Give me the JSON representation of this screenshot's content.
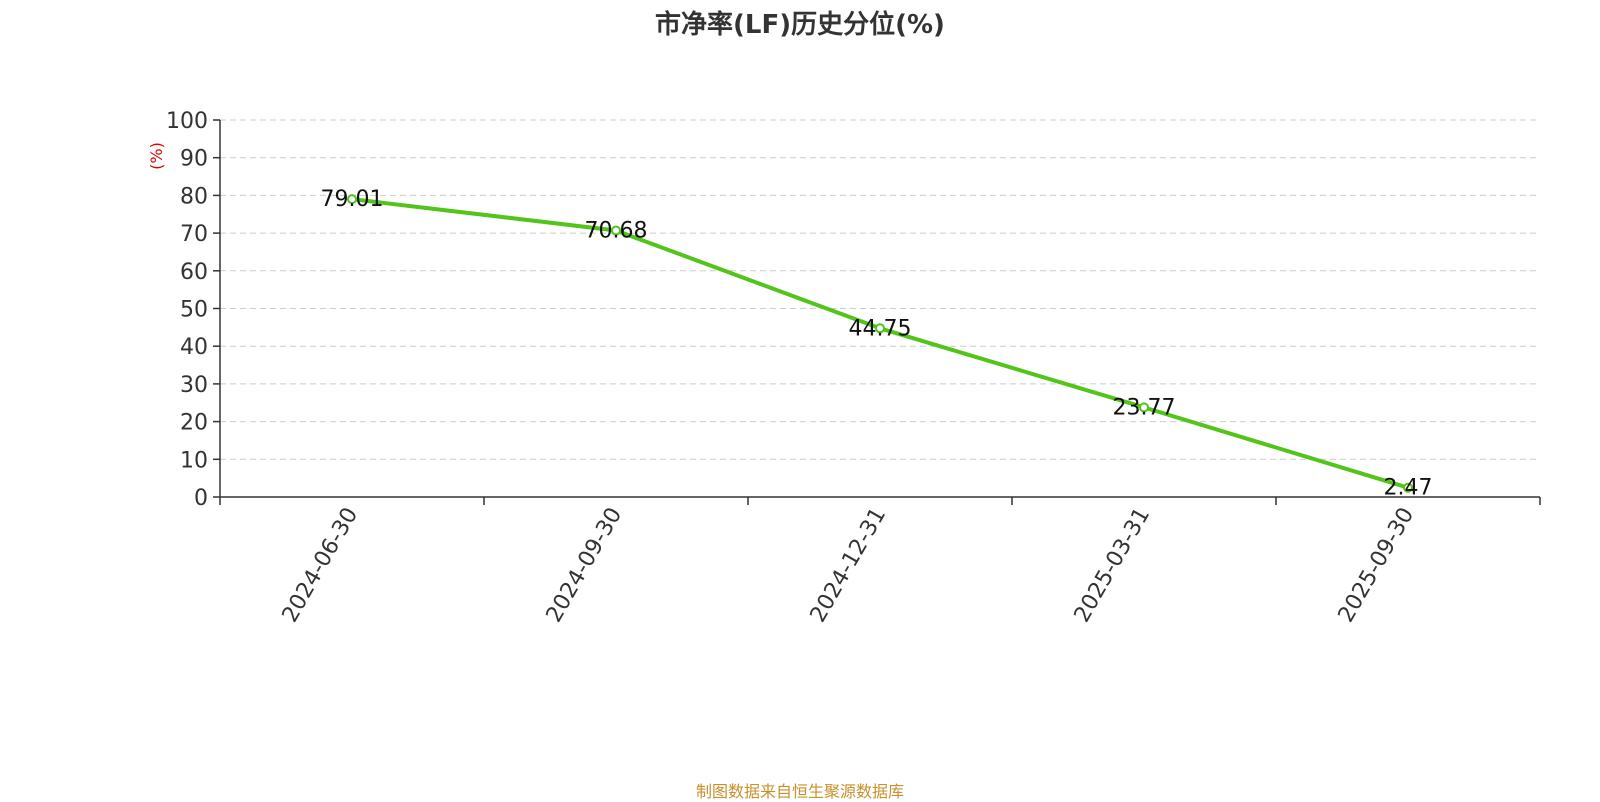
{
  "chart_data": {
    "type": "line",
    "title": "市净率(LF)历史分位(%)",
    "ylabel": "(%)",
    "xlabel": "",
    "categories": [
      "2024-06-30",
      "2024-09-30",
      "2024-12-31",
      "2025-03-31",
      "2025-09-30"
    ],
    "series": [
      {
        "values": [
          79.01,
          70.68,
          44.75,
          23.77,
          2.47
        ]
      }
    ],
    "data_labels": [
      "79.01",
      "70.68",
      "44.75",
      "23.77",
      "2.47"
    ],
    "ylim": [
      0,
      100
    ],
    "yticks": [
      "0",
      "10",
      "20",
      "30",
      "40",
      "50",
      "60",
      "70",
      "80",
      "90",
      "100"
    ],
    "grid": true,
    "line_color": "#52c41a",
    "ylabel_color": "#e00000"
  },
  "footer": {
    "source": "制图数据来自恒生聚源数据库"
  }
}
